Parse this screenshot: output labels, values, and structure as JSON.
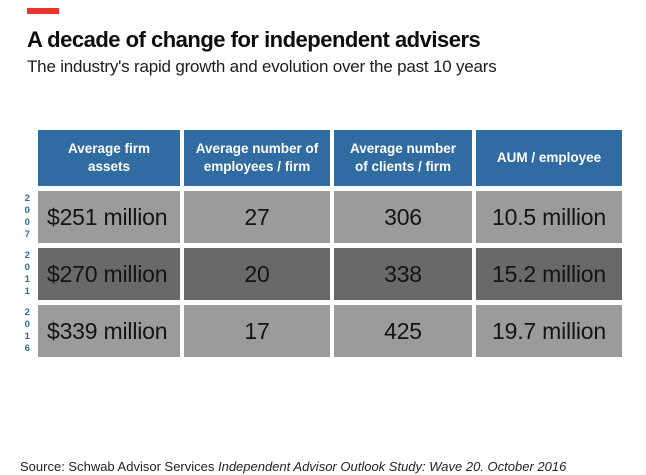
{
  "header": {
    "title": "A decade of change for independent advisers",
    "subtitle": "The industry's rapid growth and evolution over the past 10 years"
  },
  "chart_data": {
    "type": "table",
    "title": "A decade of change for independent advisers",
    "subtitle": "The industry's rapid growth and evolution over the past 10 years",
    "columns": [
      "Average firm assets",
      "Average number of employees / firm",
      "Average number of clients / firm",
      "AUM / employee"
    ],
    "rows": [
      {
        "year": "2007",
        "values": [
          "$251 million",
          "27",
          "306",
          "10.5 million"
        ]
      },
      {
        "year": "2011",
        "values": [
          "$270 million",
          "20",
          "338",
          "15.2 million"
        ]
      },
      {
        "year": "2016",
        "values": [
          "$339 million",
          "17",
          "425",
          "19.7 million"
        ]
      }
    ],
    "layout_hints": {
      "row_shading": [
        "light-gray",
        "dark-gray",
        "light-gray"
      ],
      "year_labels_vertical": true
    }
  },
  "footer": {
    "source_prefix": "Source: Schwab Advisor Services ",
    "source_italic": "Independent Advisor Outlook Study: Wave 20. October 2016"
  },
  "colors": {
    "accent_red": "#e8352a",
    "header_blue": "#306ba1",
    "row_light_gray": "#9b9b9b",
    "row_dark_gray": "#696969",
    "year_blue": "#2f6ba3",
    "text_black": "#141414"
  }
}
